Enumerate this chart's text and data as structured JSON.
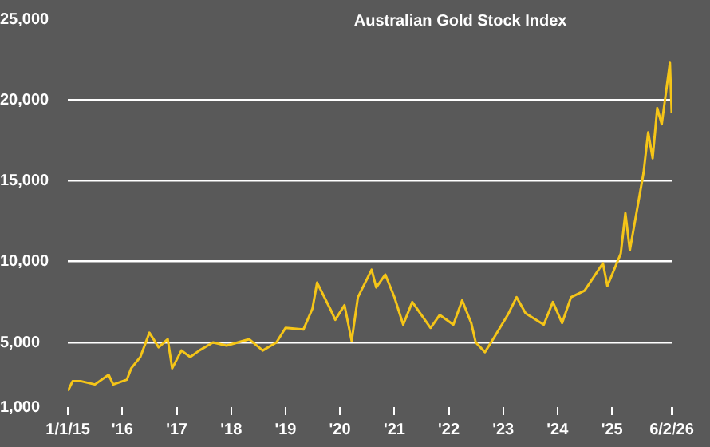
{
  "chart_data": {
    "type": "line",
    "title": "Australian Gold Stock Index",
    "x": [
      "2015-01-01",
      "2015-02-01",
      "2015-04-01",
      "2015-07-01",
      "2015-10-01",
      "2015-11-01",
      "2016-02-01",
      "2016-03-01",
      "2016-05-01",
      "2016-07-01",
      "2016-09-01",
      "2016-11-01",
      "2016-12-01",
      "2017-02-01",
      "2017-04-01",
      "2017-06-01",
      "2017-09-01",
      "2017-12-01",
      "2018-05-01",
      "2018-08-01",
      "2018-11-01",
      "2019-01-01",
      "2019-05-01",
      "2019-07-01",
      "2019-08-01",
      "2019-11-01",
      "2019-12-01",
      "2020-02-01",
      "2020-03-20",
      "2020-05-01",
      "2020-08-01",
      "2020-09-01",
      "2020-11-01",
      "2021-01-01",
      "2021-03-01",
      "2021-05-01",
      "2021-09-01",
      "2021-11-01",
      "2022-02-01",
      "2022-04-01",
      "2022-06-01",
      "2022-07-01",
      "2022-09-01",
      "2022-11-01",
      "2023-02-01",
      "2023-04-01",
      "2023-06-01",
      "2023-10-01",
      "2023-12-01",
      "2024-02-01",
      "2024-04-01",
      "2024-07-01",
      "2024-11-01",
      "2024-12-01",
      "2025-03-01",
      "2025-04-01",
      "2025-05-01",
      "2025-08-01",
      "2025-09-01",
      "2025-10-01",
      "2025-11-01",
      "2025-12-01",
      "2026-01-25",
      "2026-02-06"
    ],
    "series": [
      {
        "color": "#f5c518",
        "values": [
          2000,
          2600,
          2600,
          2400,
          3000,
          2400,
          2700,
          3400,
          4100,
          5600,
          4700,
          5200,
          3400,
          4500,
          4100,
          4500,
          5000,
          4800,
          5200,
          4500,
          5000,
          5900,
          5800,
          7100,
          8700,
          7000,
          6400,
          7300,
          5100,
          7800,
          9500,
          8400,
          9200,
          7800,
          6100,
          7500,
          5900,
          6700,
          6100,
          7600,
          6200,
          5000,
          4400,
          5300,
          6700,
          7800,
          6800,
          6100,
          7500,
          6200,
          7800,
          8200,
          9900,
          8500,
          10500,
          13000,
          10700,
          15500,
          18000,
          16400,
          19500,
          18500,
          22300,
          19200
        ]
      }
    ],
    "xlim": [
      "2015-01-01",
      "2026-02-06"
    ],
    "xticks": [
      {
        "value": "2015-01-01",
        "label": "1/1/15"
      },
      {
        "value": "2016-01-01",
        "label": "'16"
      },
      {
        "value": "2017-01-01",
        "label": "'17"
      },
      {
        "value": "2018-01-01",
        "label": "'18"
      },
      {
        "value": "2019-01-01",
        "label": "'19"
      },
      {
        "value": "2020-01-01",
        "label": "'20"
      },
      {
        "value": "2021-01-01",
        "label": "'21"
      },
      {
        "value": "2022-01-01",
        "label": "'22"
      },
      {
        "value": "2023-01-01",
        "label": "'23"
      },
      {
        "value": "2024-01-01",
        "label": "'24"
      },
      {
        "value": "2025-01-01",
        "label": "'25"
      },
      {
        "value": "2026-02-06",
        "label": "6/2/26"
      }
    ],
    "ylim": [
      1000,
      25000
    ],
    "yticks": [
      {
        "value": 1000,
        "label": "1,000"
      },
      {
        "value": 5000,
        "label": "5,000"
      },
      {
        "value": 10000,
        "label": "10,000"
      },
      {
        "value": 15000,
        "label": "15,000"
      },
      {
        "value": 20000,
        "label": "20,000"
      },
      {
        "value": 25000,
        "label": "25,000"
      }
    ],
    "grid": "y",
    "marker": "none",
    "line_style": "solid",
    "legend": false
  }
}
